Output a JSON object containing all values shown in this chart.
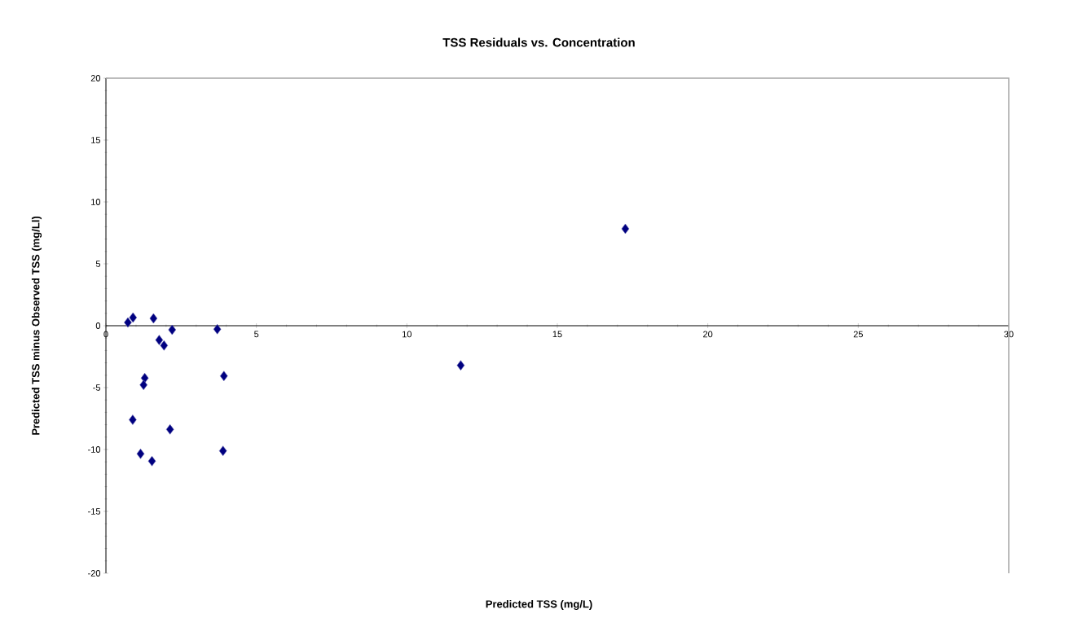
{
  "chart_data": {
    "type": "scatter",
    "title": "TSS Residuals vs. Concentration",
    "xlabel": "Predicted TSS (mg/L)",
    "ylabel": "Predicted TSS minus Observed TSS (mg/Ll)",
    "x": [
      0.73,
      0.9,
      1.58,
      2.2,
      1.77,
      1.93,
      1.29,
      1.25,
      0.89,
      2.13,
      1.15,
      1.53,
      3.7,
      3.92,
      3.89,
      11.79,
      17.26
    ],
    "values": [
      0.26,
      0.66,
      0.59,
      -0.33,
      -1.16,
      -1.6,
      -4.23,
      -4.78,
      -7.6,
      -8.38,
      -10.35,
      -10.94,
      -0.28,
      -4.06,
      -10.11,
      -3.2,
      7.83
    ],
    "color": "#000080",
    "marker": "diamond",
    "xlim": [
      0,
      30
    ],
    "xticks": [
      0,
      5,
      10,
      15,
      20,
      25,
      30
    ],
    "ylim": [
      -20,
      20
    ],
    "yticks": [
      -20,
      -15,
      -10,
      -5,
      0,
      5,
      10,
      15,
      20
    ]
  }
}
